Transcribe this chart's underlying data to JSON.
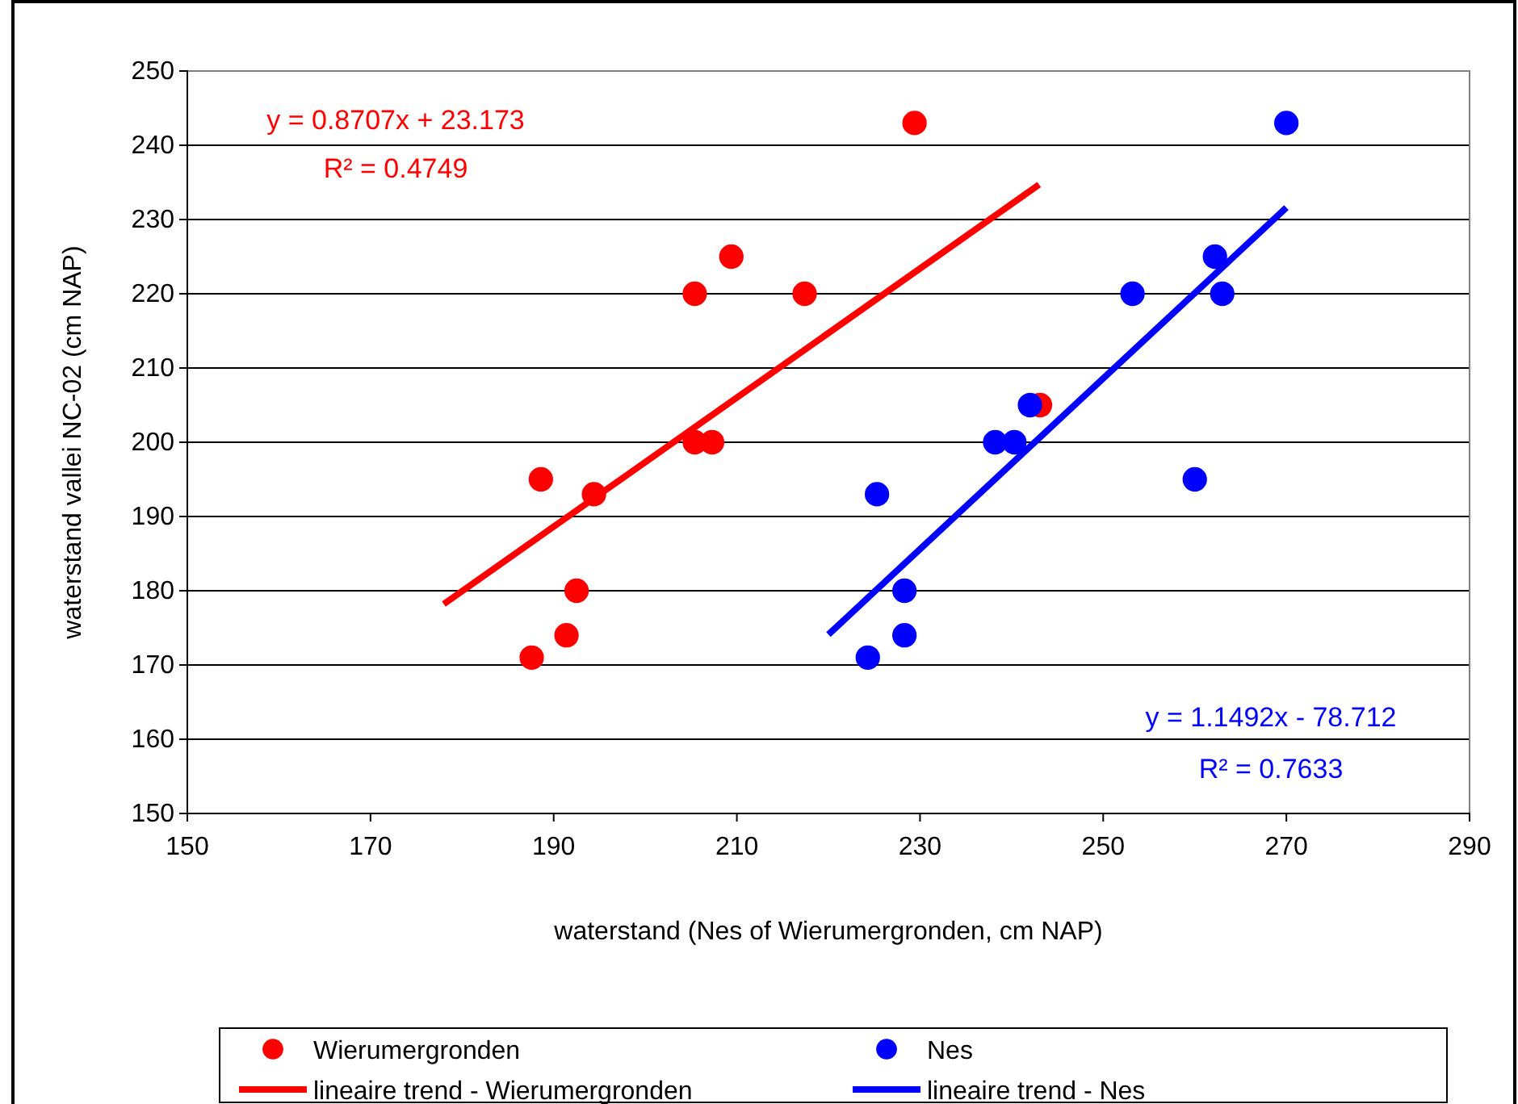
{
  "chart_data": {
    "type": "scatter",
    "xlabel": "waterstand (Nes of Wierumergronden, cm NAP)",
    "ylabel": "waterstand vallei NC-02 (cm NAP)",
    "xlim": [
      150,
      290
    ],
    "xticks": [
      150,
      170,
      190,
      210,
      230,
      250,
      270,
      290
    ],
    "ylim": [
      150,
      250
    ],
    "yticks": [
      150,
      160,
      170,
      180,
      190,
      200,
      210,
      220,
      230,
      240,
      250
    ],
    "grid": "y",
    "legend": "bottom",
    "line_style": "solid",
    "series": [
      {
        "name": "Wierumergronden",
        "marker": "circle",
        "color": "#ff0000",
        "x": [
          187.6,
          191.4,
          192.5,
          188.6,
          194.4,
          205.4,
          207.3,
          205.4,
          209.4,
          217.4,
          229.4,
          243.1
        ],
        "values": [
          171,
          174,
          180,
          195,
          193,
          200,
          200,
          220,
          225,
          220,
          243,
          205
        ]
      },
      {
        "name": "Nes",
        "marker": "circle",
        "color": "#0000ff",
        "x": [
          224.3,
          228.3,
          228.3,
          225.3,
          238.2,
          240.3,
          242,
          253.2,
          262.2,
          263,
          260,
          270
        ],
        "values": [
          171,
          174,
          180,
          193,
          200,
          200,
          205,
          220,
          225,
          220,
          195,
          243
        ]
      },
      {
        "name": "lineaire trend - Wierumergronden",
        "type": "line",
        "marker": "none",
        "color": "#ff0000",
        "x": [
          178,
          243
        ],
        "values": [
          178.2,
          234.7
        ]
      },
      {
        "name": "lineaire trend - Nes",
        "type": "line",
        "marker": "none",
        "color": "#0000ff",
        "x": [
          220,
          270
        ],
        "values": [
          174.1,
          231.6
        ]
      }
    ],
    "annotations": [
      "y = 0.8707x + 23.173",
      "R² = 0.4749",
      "y = 1.1492x - 78.712",
      "R² = 0.7633"
    ]
  }
}
